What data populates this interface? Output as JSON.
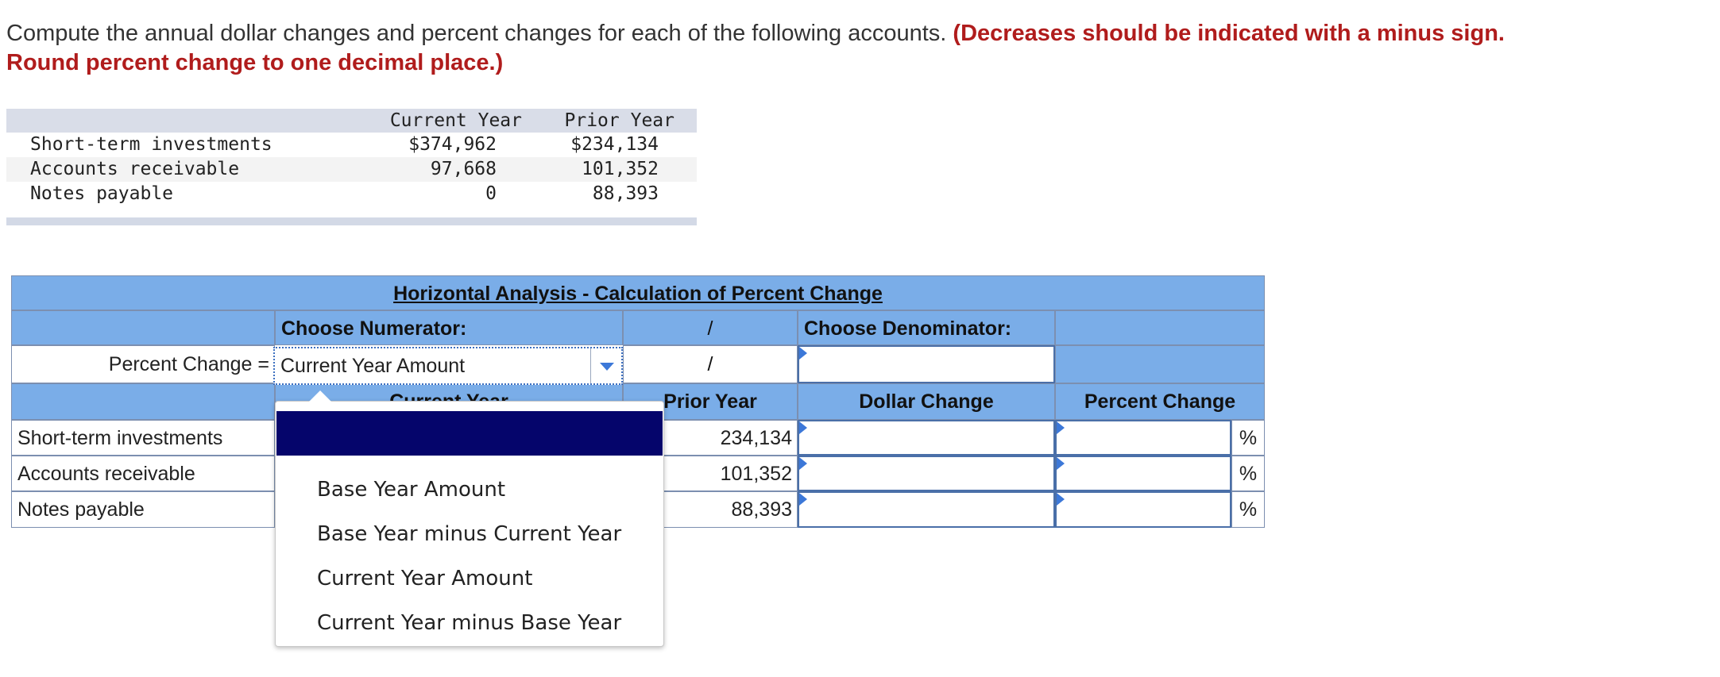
{
  "instructions": {
    "text": "Compute the annual dollar changes and percent changes for each of the following accounts. ",
    "emphasis": "(Decreases should be indicated with a minus sign. Round percent change to one decimal place.)"
  },
  "given_table": {
    "headers": [
      "",
      "Current Year",
      "Prior Year"
    ],
    "rows": [
      {
        "label": "Short-term investments",
        "current": "$374,962",
        "prior": "$234,134"
      },
      {
        "label": "Accounts receivable",
        "current": "97,668",
        "prior": "101,352"
      },
      {
        "label": "Notes payable",
        "current": "0",
        "prior": "88,393"
      }
    ]
  },
  "worksheet": {
    "title": "Horizontal Analysis - Calculation of Percent Change",
    "choose_numerator": "Choose Numerator:",
    "slash": "/",
    "choose_denominator": "Choose Denominator:",
    "percent_change_label": "Percent Change =",
    "numerator_selected": "Current Year Amount",
    "col_current_year": "Current Year",
    "col_prior_year": "Prior Year",
    "col_dollar_change": "Dollar Change",
    "col_percent_change": "Percent Change",
    "percent_sign": "%",
    "rows": [
      {
        "label": "Short-term investments",
        "prior": "234,134"
      },
      {
        "label": "Accounts receivable",
        "prior": "101,352"
      },
      {
        "label": "Notes payable",
        "prior": "88,393"
      }
    ]
  },
  "dropdown": {
    "options": [
      "Base Year Amount",
      "Base Year minus Current Year",
      "Current Year Amount",
      "Current Year minus Base Year"
    ]
  },
  "colors": {
    "header_blue": "#7aade8",
    "highlight": "#05056b",
    "instruction_red": "#b01c1c"
  }
}
